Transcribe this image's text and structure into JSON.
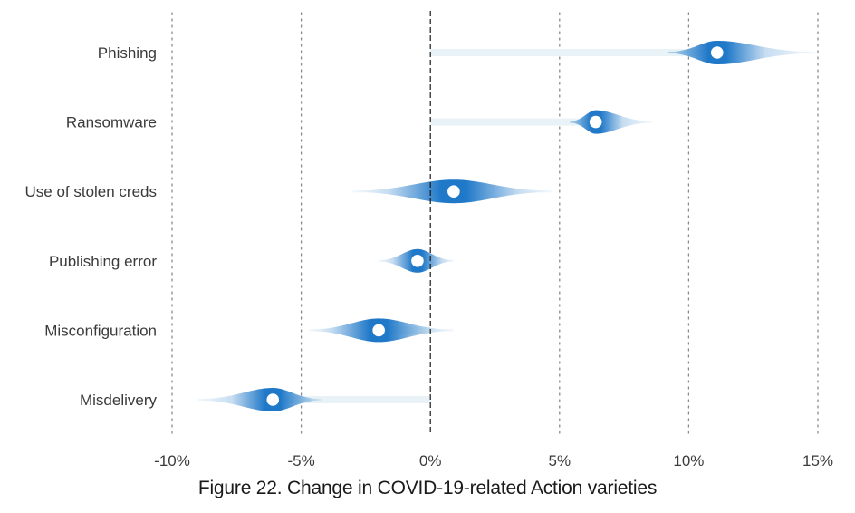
{
  "chart_data": {
    "type": "violin",
    "title": "Figure 22. Change in COVID-19-related Action varieties",
    "xlabel": "",
    "ylabel": "",
    "xlim": [
      -10,
      15
    ],
    "x_ticks": [
      -10,
      -5,
      0,
      5,
      10,
      15
    ],
    "x_tick_labels": [
      "-10%",
      "-5%",
      "0%",
      "5%",
      "10%",
      "15%"
    ],
    "grid": true,
    "accent_color": "#1f78c8",
    "categories": [
      "Phishing",
      "Ransomware",
      "Use of stolen creds",
      "Publishing error",
      "Misconfiguration",
      "Misdelivery"
    ],
    "series": [
      {
        "label": "Phishing",
        "point": 11.1,
        "range": [
          9.2,
          14.9
        ]
      },
      {
        "label": "Ransomware",
        "point": 6.4,
        "range": [
          5.4,
          8.6
        ]
      },
      {
        "label": "Use of stolen creds",
        "point": 0.9,
        "range": [
          -3.0,
          4.7
        ]
      },
      {
        "label": "Publishing error",
        "point": -0.5,
        "range": [
          -2.0,
          0.9
        ]
      },
      {
        "label": "Misconfiguration",
        "point": -2.0,
        "range": [
          -4.7,
          0.9
        ]
      },
      {
        "label": "Misdelivery",
        "point": -6.1,
        "range": [
          -9.0,
          -4.2
        ]
      }
    ]
  }
}
